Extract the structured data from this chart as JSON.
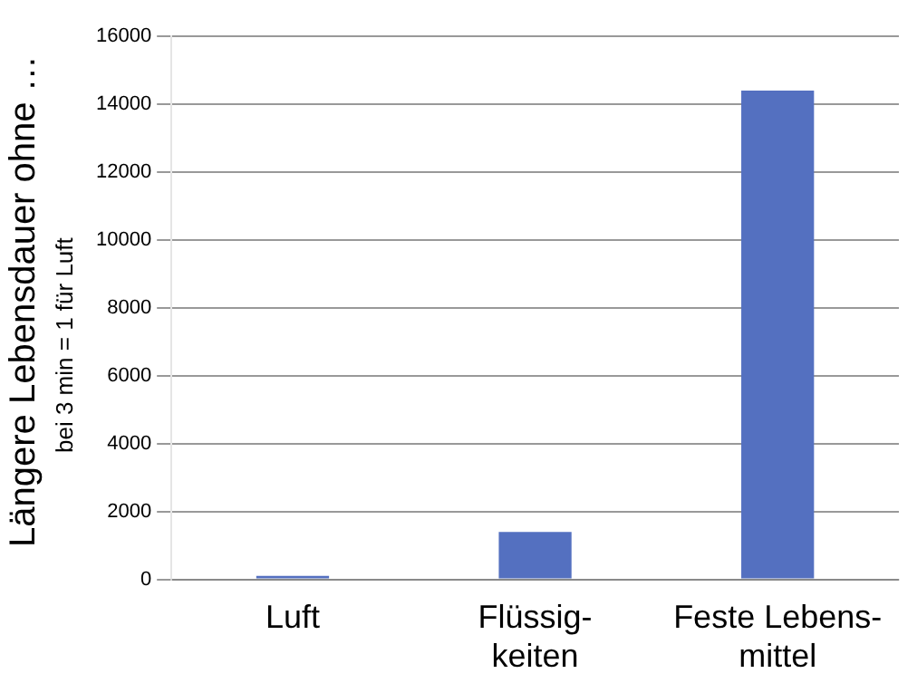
{
  "chart_data": {
    "type": "bar",
    "ylabel": "Längere Lebensdauer ohne …",
    "subtitle": "bei 3 min = 1 für Luft",
    "categories": [
      "Luft",
      "Flüssig-\nkeiten",
      "Feste Lebens-\nmittel"
    ],
    "values": [
      100,
      1400,
      14400
    ],
    "color": "#5470c0",
    "ylim": [
      0,
      16000
    ],
    "yticks": [
      0,
      2000,
      4000,
      6000,
      8000,
      10000,
      12000,
      14000,
      16000
    ],
    "grid": "y",
    "legend": false
  }
}
